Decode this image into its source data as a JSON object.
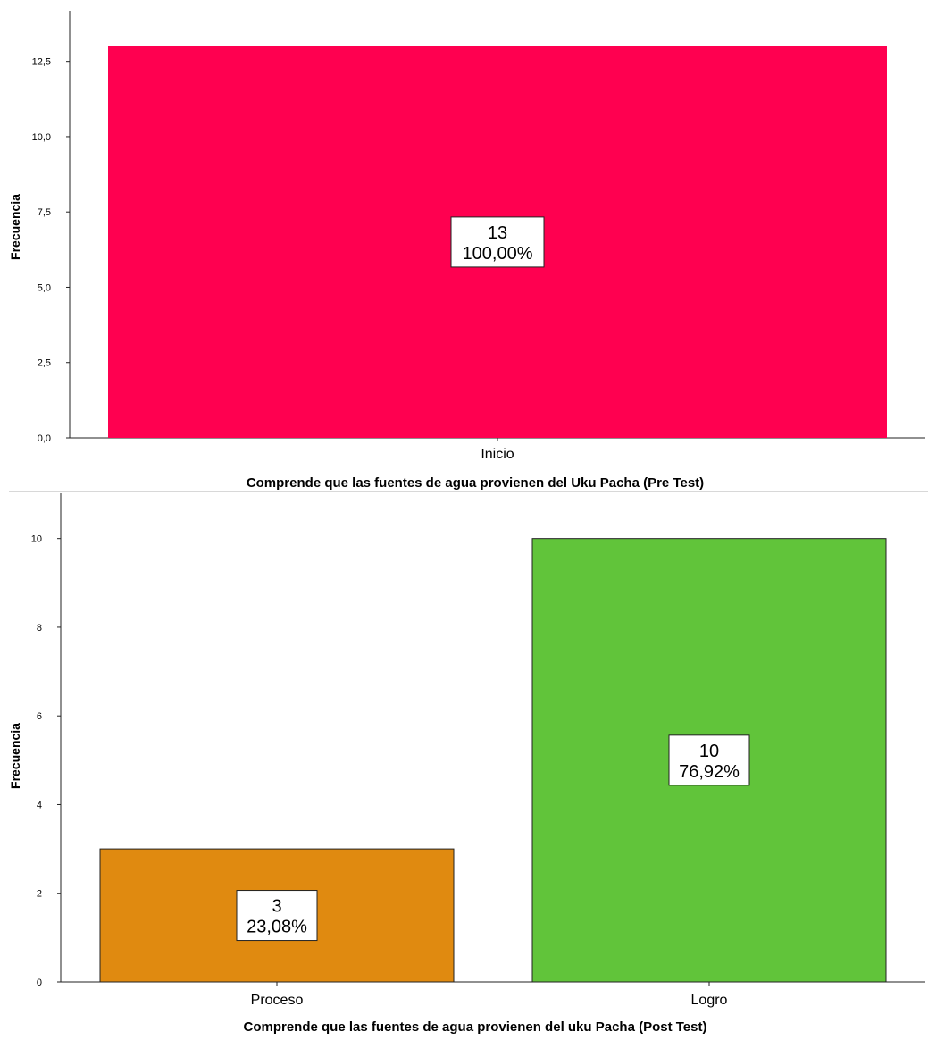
{
  "chart_data": [
    {
      "type": "bar",
      "categories": [
        "Inicio"
      ],
      "values": [
        13
      ],
      "data_labels": [
        [
          "13",
          "100,00%"
        ]
      ],
      "colors": [
        "#ff0050"
      ],
      "xlabel": "Comprende que las fuentes de agua provienen del Uku Pacha (Pre Test)",
      "ylabel": "Frecuencia",
      "ylim": [
        0,
        14.3
      ],
      "yticks": [
        0,
        2.5,
        5,
        7.5,
        10,
        12.5
      ],
      "ytick_labels": [
        "0,0",
        "2,5",
        "5,0",
        "7,5",
        "10,0",
        "12,5"
      ],
      "grid": false,
      "legend": "none"
    },
    {
      "type": "bar",
      "categories": [
        "Proceso",
        "Logro"
      ],
      "values": [
        3,
        10
      ],
      "data_labels": [
        [
          "3",
          "23,08%"
        ],
        [
          "10",
          "76,92%"
        ]
      ],
      "colors": [
        "#e08a10",
        "#61c43a"
      ],
      "xlabel": "Comprende que las fuentes de agua provienen del uku Pacha (Post Test)",
      "ylabel": "Frecuencia",
      "ylim": [
        0,
        10.9
      ],
      "yticks": [
        0,
        2,
        4,
        6,
        8,
        10
      ],
      "ytick_labels": [
        "0",
        "2",
        "4",
        "6",
        "8",
        "10"
      ],
      "grid": false,
      "legend": "none"
    }
  ]
}
